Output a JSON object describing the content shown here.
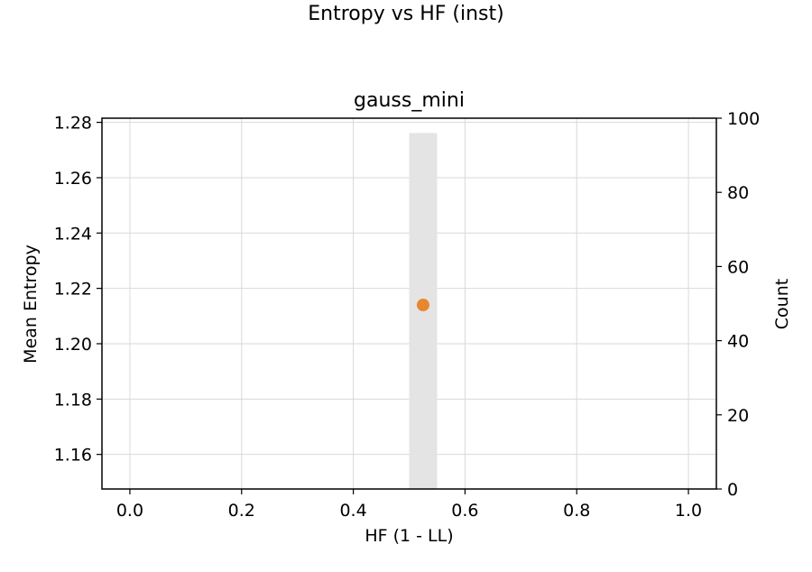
{
  "figure_title": "Entropy vs HF (inst)",
  "chart_data": {
    "type": "scatter",
    "title": "gauss_mini",
    "xlabel": "HF (1 - LL)",
    "ylabel": "Mean Entropy",
    "y2label": "Count",
    "xlim": [
      -0.05,
      1.05
    ],
    "ylim": [
      1.1475,
      1.2815
    ],
    "y2lim": [
      0,
      100
    ],
    "xticks": [
      "0.0",
      "0.2",
      "0.4",
      "0.6",
      "0.8",
      "1.0"
    ],
    "yticks": [
      "1.16",
      "1.18",
      "1.20",
      "1.22",
      "1.24",
      "1.26",
      "1.28"
    ],
    "y2ticks": [
      "0",
      "20",
      "40",
      "60",
      "80",
      "100"
    ],
    "grid": true,
    "histogram": {
      "axis": "right",
      "color": "#e4e4e4",
      "bins": [
        {
          "x0": 0.5,
          "x1": 0.55,
          "count": 96
        }
      ]
    },
    "series": [
      {
        "color": "#e8872f",
        "points": [
          {
            "x": 0.525,
            "y": 1.214
          }
        ]
      }
    ]
  }
}
